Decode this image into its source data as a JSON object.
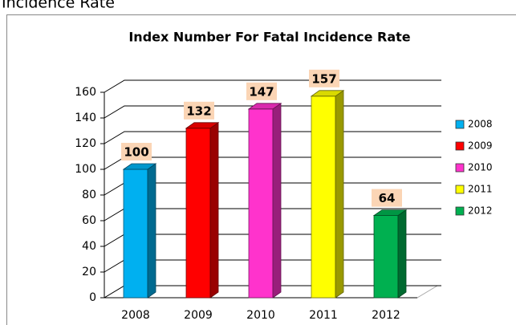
{
  "heading": "Incidence Rate",
  "chart_data": {
    "type": "bar3d",
    "title": "Index Number For Fatal Incidence Rate",
    "categories": [
      "2008",
      "2009",
      "2010",
      "2011",
      "2012"
    ],
    "values": [
      100,
      132,
      147,
      157,
      64
    ],
    "colors": [
      "#00b0f0",
      "#ff0000",
      "#ff33cc",
      "#ffff00",
      "#00b050"
    ],
    "ylim": [
      0,
      160
    ],
    "yticks": [
      0,
      20,
      40,
      60,
      80,
      100,
      120,
      140,
      160
    ],
    "grid": true,
    "legend": "right"
  }
}
